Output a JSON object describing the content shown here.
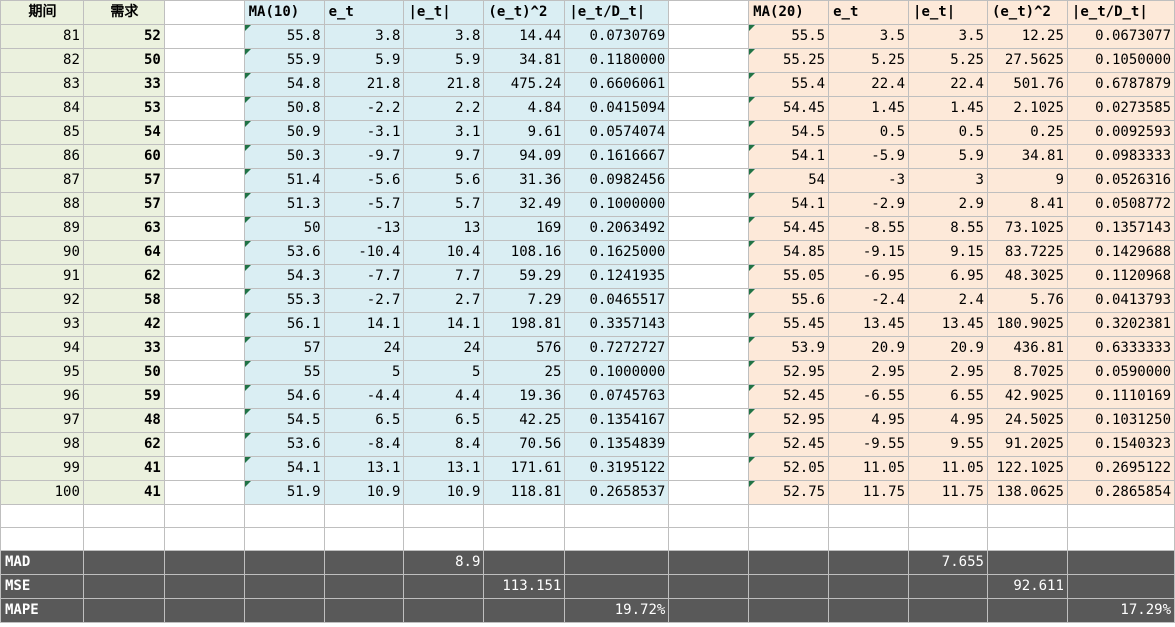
{
  "headers": {
    "period": "期间",
    "demand": "需求",
    "ma10": "MA(10)",
    "e1": "e_t",
    "abs1": "|e_t|",
    "sq1": "(e_t)^2",
    "pct1": "|e_t/D_t|",
    "ma20": "MA(20)",
    "e2": "e_t",
    "abs2": "|e_t|",
    "sq2": "(e_t)^2",
    "pct2": "|e_t/D_t|"
  },
  "rows": [
    {
      "p": "81",
      "d": "52",
      "ma10": "55.8",
      "e1": "3.8",
      "a1": "3.8",
      "s1": "14.44",
      "q1": "0.0730769",
      "ma20": "55.5",
      "e2": "3.5",
      "a2": "3.5",
      "s2": "12.25",
      "q2": "0.0673077"
    },
    {
      "p": "82",
      "d": "50",
      "ma10": "55.9",
      "e1": "5.9",
      "a1": "5.9",
      "s1": "34.81",
      "q1": "0.1180000",
      "ma20": "55.25",
      "e2": "5.25",
      "a2": "5.25",
      "s2": "27.5625",
      "q2": "0.1050000"
    },
    {
      "p": "83",
      "d": "33",
      "ma10": "54.8",
      "e1": "21.8",
      "a1": "21.8",
      "s1": "475.24",
      "q1": "0.6606061",
      "ma20": "55.4",
      "e2": "22.4",
      "a2": "22.4",
      "s2": "501.76",
      "q2": "0.6787879"
    },
    {
      "p": "84",
      "d": "53",
      "ma10": "50.8",
      "e1": "-2.2",
      "a1": "2.2",
      "s1": "4.84",
      "q1": "0.0415094",
      "ma20": "54.45",
      "e2": "1.45",
      "a2": "1.45",
      "s2": "2.1025",
      "q2": "0.0273585"
    },
    {
      "p": "85",
      "d": "54",
      "ma10": "50.9",
      "e1": "-3.1",
      "a1": "3.1",
      "s1": "9.61",
      "q1": "0.0574074",
      "ma20": "54.5",
      "e2": "0.5",
      "a2": "0.5",
      "s2": "0.25",
      "q2": "0.0092593"
    },
    {
      "p": "86",
      "d": "60",
      "ma10": "50.3",
      "e1": "-9.7",
      "a1": "9.7",
      "s1": "94.09",
      "q1": "0.1616667",
      "ma20": "54.1",
      "e2": "-5.9",
      "a2": "5.9",
      "s2": "34.81",
      "q2": "0.0983333"
    },
    {
      "p": "87",
      "d": "57",
      "ma10": "51.4",
      "e1": "-5.6",
      "a1": "5.6",
      "s1": "31.36",
      "q1": "0.0982456",
      "ma20": "54",
      "e2": "-3",
      "a2": "3",
      "s2": "9",
      "q2": "0.0526316"
    },
    {
      "p": "88",
      "d": "57",
      "ma10": "51.3",
      "e1": "-5.7",
      "a1": "5.7",
      "s1": "32.49",
      "q1": "0.1000000",
      "ma20": "54.1",
      "e2": "-2.9",
      "a2": "2.9",
      "s2": "8.41",
      "q2": "0.0508772"
    },
    {
      "p": "89",
      "d": "63",
      "ma10": "50",
      "e1": "-13",
      "a1": "13",
      "s1": "169",
      "q1": "0.2063492",
      "ma20": "54.45",
      "e2": "-8.55",
      "a2": "8.55",
      "s2": "73.1025",
      "q2": "0.1357143"
    },
    {
      "p": "90",
      "d": "64",
      "ma10": "53.6",
      "e1": "-10.4",
      "a1": "10.4",
      "s1": "108.16",
      "q1": "0.1625000",
      "ma20": "54.85",
      "e2": "-9.15",
      "a2": "9.15",
      "s2": "83.7225",
      "q2": "0.1429688"
    },
    {
      "p": "91",
      "d": "62",
      "ma10": "54.3",
      "e1": "-7.7",
      "a1": "7.7",
      "s1": "59.29",
      "q1": "0.1241935",
      "ma20": "55.05",
      "e2": "-6.95",
      "a2": "6.95",
      "s2": "48.3025",
      "q2": "0.1120968"
    },
    {
      "p": "92",
      "d": "58",
      "ma10": "55.3",
      "e1": "-2.7",
      "a1": "2.7",
      "s1": "7.29",
      "q1": "0.0465517",
      "ma20": "55.6",
      "e2": "-2.4",
      "a2": "2.4",
      "s2": "5.76",
      "q2": "0.0413793"
    },
    {
      "p": "93",
      "d": "42",
      "ma10": "56.1",
      "e1": "14.1",
      "a1": "14.1",
      "s1": "198.81",
      "q1": "0.3357143",
      "ma20": "55.45",
      "e2": "13.45",
      "a2": "13.45",
      "s2": "180.9025",
      "q2": "0.3202381"
    },
    {
      "p": "94",
      "d": "33",
      "ma10": "57",
      "e1": "24",
      "a1": "24",
      "s1": "576",
      "q1": "0.7272727",
      "ma20": "53.9",
      "e2": "20.9",
      "a2": "20.9",
      "s2": "436.81",
      "q2": "0.6333333"
    },
    {
      "p": "95",
      "d": "50",
      "ma10": "55",
      "e1": "5",
      "a1": "5",
      "s1": "25",
      "q1": "0.1000000",
      "ma20": "52.95",
      "e2": "2.95",
      "a2": "2.95",
      "s2": "8.7025",
      "q2": "0.0590000"
    },
    {
      "p": "96",
      "d": "59",
      "ma10": "54.6",
      "e1": "-4.4",
      "a1": "4.4",
      "s1": "19.36",
      "q1": "0.0745763",
      "ma20": "52.45",
      "e2": "-6.55",
      "a2": "6.55",
      "s2": "42.9025",
      "q2": "0.1110169"
    },
    {
      "p": "97",
      "d": "48",
      "ma10": "54.5",
      "e1": "6.5",
      "a1": "6.5",
      "s1": "42.25",
      "q1": "0.1354167",
      "ma20": "52.95",
      "e2": "4.95",
      "a2": "4.95",
      "s2": "24.5025",
      "q2": "0.1031250"
    },
    {
      "p": "98",
      "d": "62",
      "ma10": "53.6",
      "e1": "-8.4",
      "a1": "8.4",
      "s1": "70.56",
      "q1": "0.1354839",
      "ma20": "52.45",
      "e2": "-9.55",
      "a2": "9.55",
      "s2": "91.2025",
      "q2": "0.1540323"
    },
    {
      "p": "99",
      "d": "41",
      "ma10": "54.1",
      "e1": "13.1",
      "a1": "13.1",
      "s1": "171.61",
      "q1": "0.3195122",
      "ma20": "52.05",
      "e2": "11.05",
      "a2": "11.05",
      "s2": "122.1025",
      "q2": "0.2695122"
    },
    {
      "p": "100",
      "d": "41",
      "ma10": "51.9",
      "e1": "10.9",
      "a1": "10.9",
      "s1": "118.81",
      "q1": "0.2658537",
      "ma20": "52.75",
      "e2": "11.75",
      "a2": "11.75",
      "s2": "138.0625",
      "q2": "0.2865854"
    }
  ],
  "summary": {
    "mad": {
      "label": "MAD",
      "ma10": "8.9",
      "ma20": "7.655"
    },
    "mse": {
      "label": "MSE",
      "ma10": "113.151",
      "ma20": "92.611"
    },
    "mape": {
      "label": "MAPE",
      "ma10": "19.72%",
      "ma20": "17.29%"
    }
  }
}
